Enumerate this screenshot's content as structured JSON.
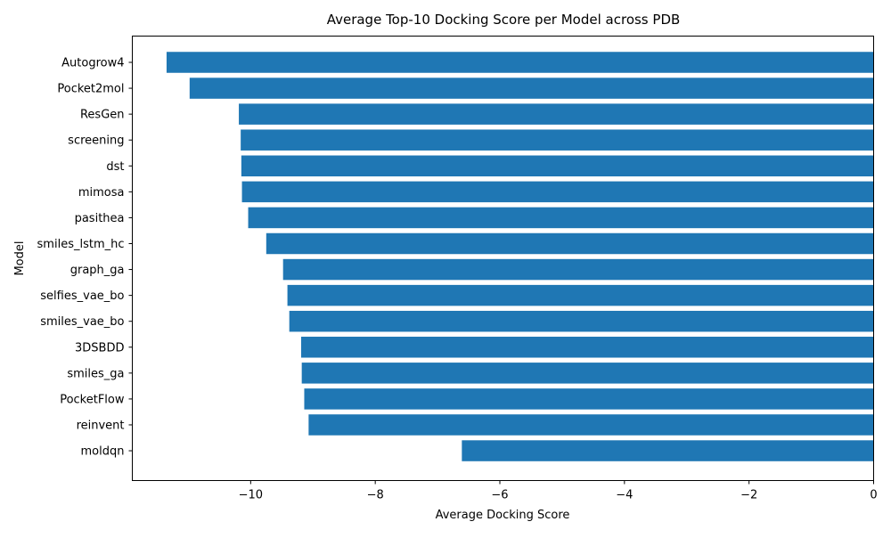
{
  "chart_data": {
    "type": "bar",
    "orientation": "horizontal",
    "title": "Average Top-10 Docking Score per Model across PDB",
    "xlabel": "Average Docking Score",
    "ylabel": "Model",
    "xlim": [
      -11.9,
      0
    ],
    "xticks": [
      -10,
      -8,
      -6,
      -4,
      -2,
      0
    ],
    "xtick_labels": [
      "−10",
      "−8",
      "−6",
      "−4",
      "−2",
      "0"
    ],
    "grid": false,
    "bar_color": "#1f77b4",
    "categories": [
      "Autogrow4",
      "Pocket2mol",
      "ResGen",
      "screening",
      "dst",
      "mimosa",
      "pasithea",
      "smiles_lstm_hc",
      "graph_ga",
      "selfies_vae_bo",
      "smiles_vae_bo",
      "3DSBDD",
      "smiles_ga",
      "PocketFlow",
      "reinvent",
      "moldqn"
    ],
    "values": [
      -11.35,
      -10.98,
      -10.19,
      -10.16,
      -10.15,
      -10.14,
      -10.04,
      -9.75,
      -9.48,
      -9.41,
      -9.38,
      -9.19,
      -9.18,
      -9.14,
      -9.07,
      -6.61
    ]
  }
}
